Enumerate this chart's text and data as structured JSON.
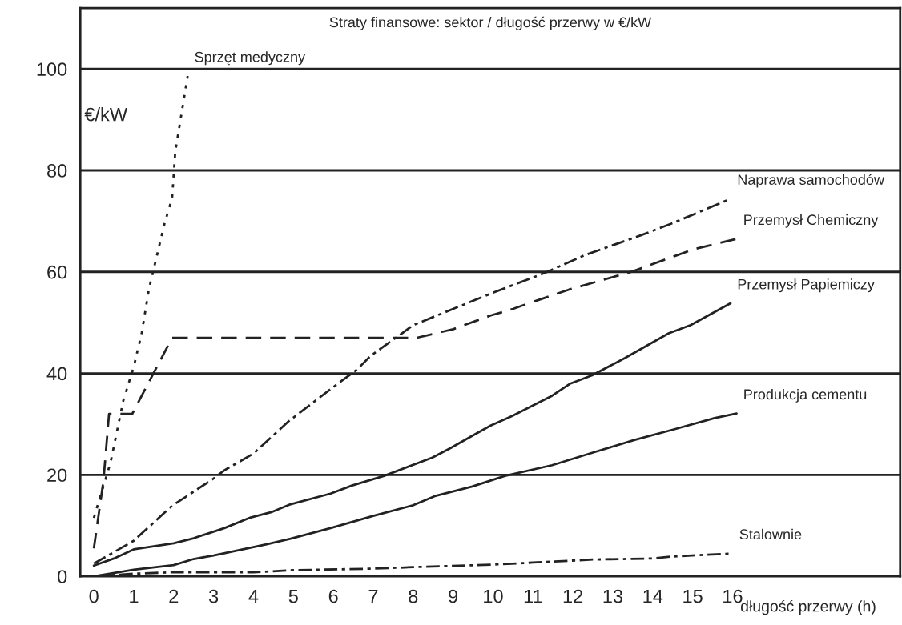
{
  "chart_data": {
    "type": "line",
    "title": "Straty finansowe: sektor / długość przerwy w €/kW",
    "ylabel": "€/kW",
    "xlabel": "długość przerwy (h)",
    "xlim": [
      -0.34,
      20.2
    ],
    "xticks": [
      0,
      1,
      2,
      3,
      4,
      5,
      6,
      7,
      8,
      9,
      10,
      11,
      12,
      13,
      14,
      15,
      16
    ],
    "ylim": [
      0,
      112
    ],
    "yticks": [
      0,
      20,
      40,
      60,
      80,
      100
    ],
    "grid": "y",
    "legend": false,
    "series": [
      {
        "name": "Sprzęt medyczny",
        "color": "#222222",
        "line_style": "dotted",
        "x": [
          0,
          0.42,
          0.74,
          1.0,
          1.2,
          1.38,
          1.54,
          1.77,
          1.96,
          2.04,
          2.35
        ],
        "values": [
          11.5,
          22.5,
          34.7,
          41.3,
          48,
          56.6,
          61.9,
          69.5,
          74.5,
          83.7,
          98.6
        ]
      },
      {
        "name": "Naprawa samochodów",
        "color": "#222222",
        "line_style": "dashdot",
        "x": [
          0,
          1,
          1.96,
          2.97,
          3.27,
          4.0,
          4.87,
          5.93,
          6.6,
          6.94,
          7.6,
          8.0,
          9.0,
          10.0,
          11.3,
          12.3,
          13.7,
          14.5,
          15.95
        ],
        "values": [
          2.5,
          7,
          13.9,
          19.1,
          20.9,
          24.2,
          30.5,
          36.9,
          40.8,
          43.5,
          47.2,
          49.5,
          52.7,
          55.9,
          59.8,
          63.3,
          67.2,
          69.6,
          74.4
        ]
      },
      {
        "name": "Przemysł Chemiczny",
        "color": "#222222",
        "line_style": "dashed",
        "x": [
          0,
          0.24,
          0.38,
          0.96,
          1.96,
          8.08,
          9.0,
          9.94,
          10.5,
          11.0,
          11.9,
          13.5,
          15.0,
          16.1
        ],
        "values": [
          5.5,
          18.8,
          32,
          32,
          47,
          47,
          48.7,
          51.4,
          52.7,
          54.1,
          56.5,
          60.1,
          64.4,
          66.5
        ]
      },
      {
        "name": "Przemysł Papiemiczy",
        "color": "#222222",
        "line_style": "solid",
        "x": [
          0,
          0.5,
          1,
          2,
          2.5,
          3.27,
          3.93,
          4.47,
          4.93,
          5.93,
          6.47,
          7.27,
          8.48,
          8.94,
          9.48,
          9.94,
          10.48,
          11.48,
          11.94,
          12.48,
          13.3,
          14.4,
          14.95,
          15.95
        ],
        "values": [
          2.1,
          3.5,
          5.3,
          6.5,
          7.5,
          9.5,
          11.6,
          12.7,
          14.2,
          16.3,
          17.9,
          19.8,
          23.4,
          25.3,
          27.7,
          29.7,
          31.6,
          35.6,
          38,
          39.6,
          43,
          47.9,
          49.5,
          53.8
        ]
      },
      {
        "name": "Produkcja cementu",
        "color": "#222222",
        "line_style": "solid",
        "x": [
          0,
          1,
          2,
          2.5,
          3,
          4.33,
          4.93,
          5.93,
          7.0,
          8.0,
          8.54,
          9.48,
          10.3,
          11.48,
          12.55,
          13.55,
          14.55,
          15.55,
          16.1
        ],
        "values": [
          0,
          1.3,
          2.2,
          3.4,
          4.1,
          6.3,
          7.4,
          9.5,
          11.9,
          14,
          15.8,
          17.7,
          19.8,
          21.9,
          24.5,
          26.9,
          29,
          31.2,
          32.1
        ]
      },
      {
        "name": "Stalownie",
        "color": "#222222",
        "line_style": "dashdot",
        "x": [
          0,
          1,
          2,
          4,
          5,
          7,
          8,
          10,
          11,
          12.5,
          14,
          14.5,
          16
        ],
        "values": [
          0,
          0.5,
          0.8,
          0.8,
          1.2,
          1.5,
          1.8,
          2.3,
          2.7,
          3.3,
          3.5,
          3.9,
          4.5
        ]
      }
    ]
  }
}
